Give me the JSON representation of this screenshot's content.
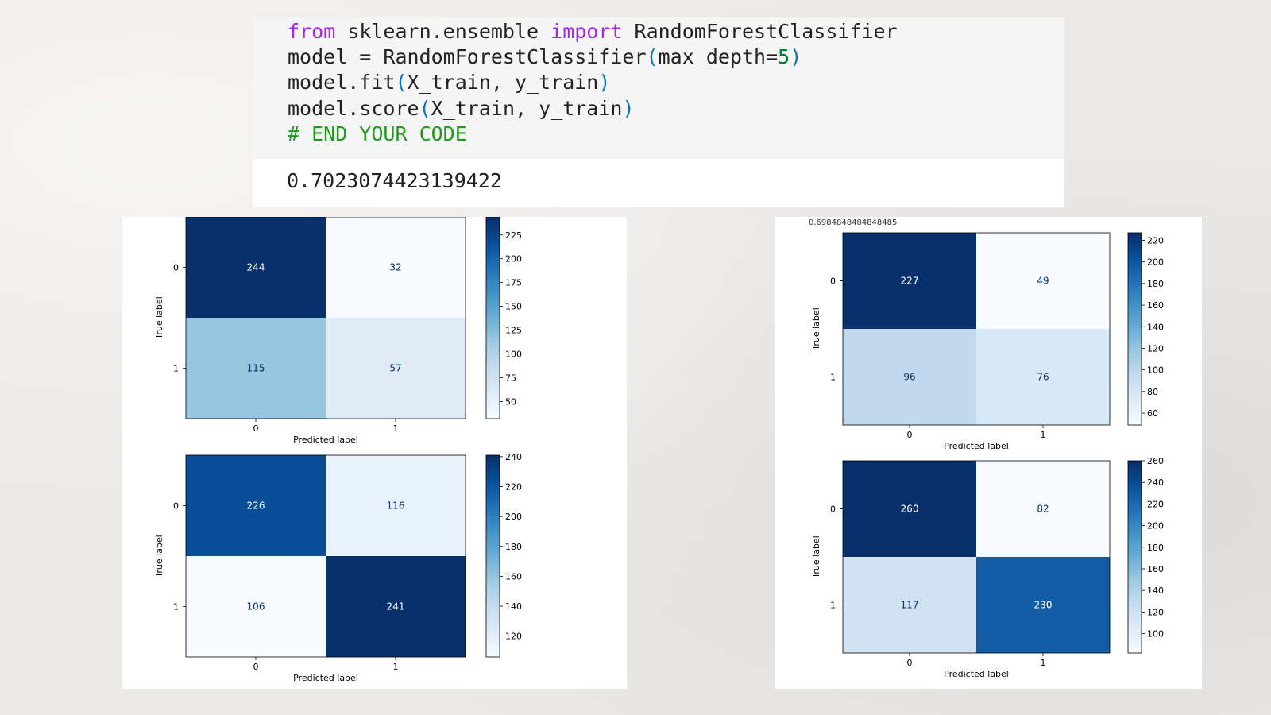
{
  "code_cell": {
    "lines": [
      [
        {
          "t": "from",
          "c": "kw"
        },
        {
          "t": " sklearn.ensemble ",
          "c": ""
        },
        {
          "t": "import",
          "c": "kw"
        },
        {
          "t": " RandomForestClassifier",
          "c": ""
        }
      ],
      [
        {
          "t": "model = RandomForestClassifier",
          "c": ""
        },
        {
          "t": "(",
          "c": "paren"
        },
        {
          "t": "max_depth=",
          "c": ""
        },
        {
          "t": "5",
          "c": "num"
        },
        {
          "t": ")",
          "c": "paren"
        }
      ],
      [
        {
          "t": "model.fit",
          "c": ""
        },
        {
          "t": "(",
          "c": "paren"
        },
        {
          "t": "X_train, y_train",
          "c": ""
        },
        {
          "t": ")",
          "c": "paren"
        }
      ],
      [
        {
          "t": "model.score",
          "c": ""
        },
        {
          "t": "(",
          "c": "paren"
        },
        {
          "t": "X_train, y_train",
          "c": ""
        },
        {
          "t": ")",
          "c": "paren"
        }
      ],
      [
        {
          "t": "# END YOUR CODE",
          "c": "comment"
        }
      ]
    ],
    "output": "0.7023074423139422"
  },
  "right_panel_score": "0.6984848484848485",
  "colors": {
    "cmap_light": "#f7fbff",
    "cmap_dark": "#08306b",
    "text_dark": "#ffffff",
    "text_light": "#08306b"
  },
  "chart_data": [
    {
      "type": "heatmap",
      "panel": "left",
      "rows": [
        "0",
        "1"
      ],
      "cols": [
        "0",
        "1"
      ],
      "values": [
        [
          244,
          32
        ],
        [
          115,
          57
        ]
      ],
      "xlabel": "Predicted label",
      "ylabel": "True label",
      "colorbar_ticks": [
        50,
        75,
        100,
        125,
        150,
        175,
        200,
        225
      ]
    },
    {
      "type": "heatmap",
      "panel": "left",
      "rows": [
        "0",
        "1"
      ],
      "cols": [
        "0",
        "1"
      ],
      "values": [
        [
          226,
          116
        ],
        [
          106,
          241
        ]
      ],
      "xlabel": "Predicted label",
      "ylabel": "True label",
      "colorbar_ticks": [
        120,
        140,
        160,
        180,
        200,
        220,
        240
      ]
    },
    {
      "type": "heatmap",
      "panel": "right",
      "rows": [
        "0",
        "1"
      ],
      "cols": [
        "0",
        "1"
      ],
      "values": [
        [
          227,
          49
        ],
        [
          96,
          76
        ]
      ],
      "xlabel": "Predicted label",
      "ylabel": "True label",
      "colorbar_ticks": [
        60,
        80,
        100,
        120,
        140,
        160,
        180,
        200,
        220
      ]
    },
    {
      "type": "heatmap",
      "panel": "right",
      "rows": [
        "0",
        "1"
      ],
      "cols": [
        "0",
        "1"
      ],
      "values": [
        [
          260,
          82
        ],
        [
          117,
          230
        ]
      ],
      "xlabel": "Predicted label",
      "ylabel": "True label",
      "colorbar_ticks": [
        100,
        120,
        140,
        160,
        180,
        200,
        220,
        240,
        260
      ]
    }
  ]
}
